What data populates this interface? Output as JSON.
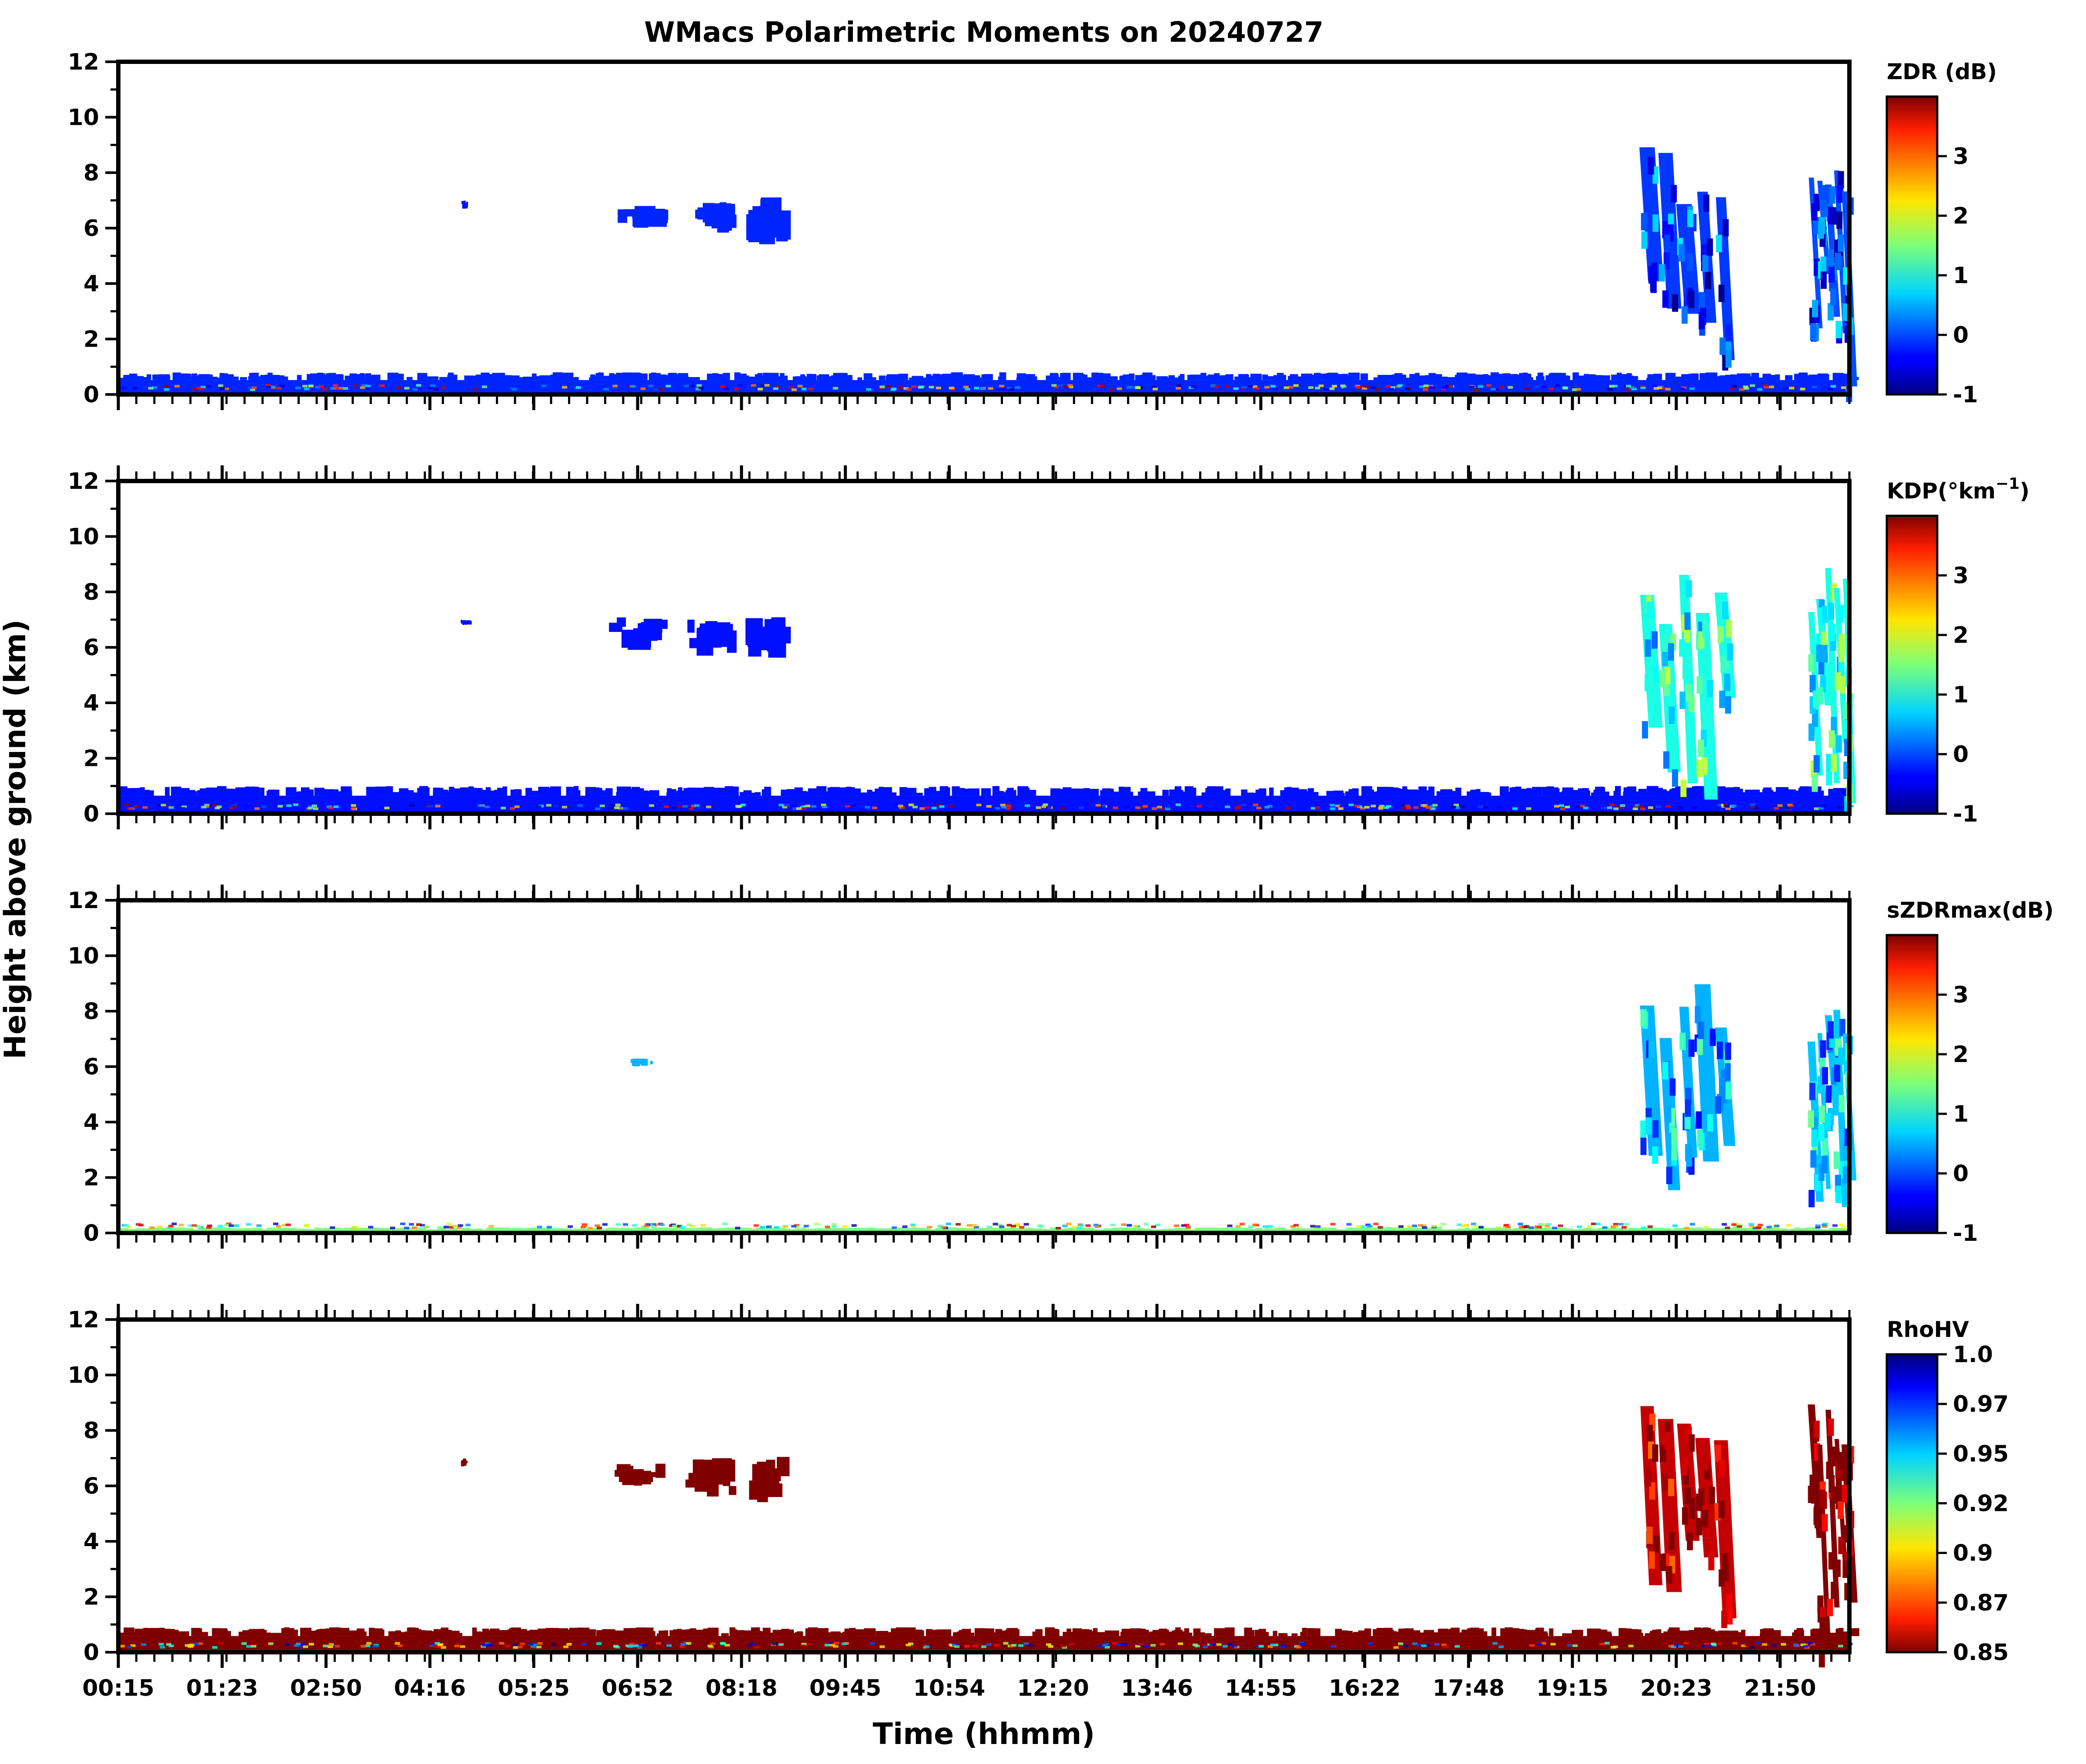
{
  "chart_data": {
    "type": "heatmap",
    "title": "WMacs Polarimetric Moments on 20240727",
    "xlabel": "Time (hhmm)",
    "ylabel": "Height above ground (km)",
    "xticklabels": [
      "00:15",
      "01:23",
      "02:50",
      "04:16",
      "05:25",
      "06:52",
      "08:18",
      "09:45",
      "10:54",
      "12:20",
      "13:46",
      "14:55",
      "16:22",
      "17:48",
      "19:15",
      "20:23",
      "21:50"
    ],
    "xrange_hours": [
      0.25,
      22.75
    ],
    "ylim": [
      0,
      12
    ],
    "yticks": [
      0,
      2,
      4,
      6,
      8,
      10,
      12
    ],
    "panels": [
      {
        "variable": "ZDR",
        "colorbar_label": "ZDR (dB)",
        "colorbar_ticks": [
          "-1",
          "0",
          "1",
          "2",
          "3"
        ],
        "colorbar_range": [
          -1,
          4
        ],
        "colormap": "jet",
        "features": [
          {
            "kind": "surface_layer",
            "start_h": 0.25,
            "end_h": 22.75,
            "top_km": 0.8,
            "value": -0.2
          },
          {
            "kind": "patch",
            "start_h": 4.7,
            "end_h": 4.8,
            "base_km": 6.7,
            "top_km": 7.0,
            "value": -0.3
          },
          {
            "kind": "patch",
            "start_h": 6.7,
            "end_h": 7.4,
            "base_km": 6.0,
            "top_km": 6.8,
            "value": -0.2
          },
          {
            "kind": "patch",
            "start_h": 7.6,
            "end_h": 8.3,
            "base_km": 5.6,
            "top_km": 7.0,
            "value": -0.2
          },
          {
            "kind": "patch",
            "start_h": 8.4,
            "end_h": 9.0,
            "base_km": 5.4,
            "top_km": 7.2,
            "value": -0.2
          },
          {
            "kind": "storm",
            "start_h": 20.0,
            "end_h": 21.2,
            "base_km": 0.0,
            "top_km": 9.0,
            "value": -0.1
          },
          {
            "kind": "storm",
            "start_h": 22.2,
            "end_h": 22.75,
            "base_km": 0.0,
            "top_km": 9.0,
            "value": 0.0
          }
        ]
      },
      {
        "variable": "KDP",
        "colorbar_label": "KDP(°km",
        "colorbar_label_sup": "−1",
        "colorbar_label_end": ")",
        "colorbar_ticks": [
          "-1",
          "0",
          "1",
          "2",
          "3"
        ],
        "colorbar_range": [
          -1,
          4
        ],
        "colormap": "jet",
        "features": [
          {
            "kind": "surface_layer",
            "start_h": 0.25,
            "end_h": 22.75,
            "top_km": 1.0,
            "value": -0.3
          },
          {
            "kind": "patch",
            "start_h": 4.7,
            "end_h": 4.85,
            "base_km": 6.8,
            "top_km": 7.0,
            "value": -0.3
          },
          {
            "kind": "patch",
            "start_h": 6.6,
            "end_h": 7.4,
            "base_km": 5.9,
            "top_km": 7.1,
            "value": -0.3
          },
          {
            "kind": "patch",
            "start_h": 7.6,
            "end_h": 8.3,
            "base_km": 5.7,
            "top_km": 7.0,
            "value": -0.3
          },
          {
            "kind": "patch",
            "start_h": 8.4,
            "end_h": 9.0,
            "base_km": 5.6,
            "top_km": 7.2,
            "value": -0.3
          },
          {
            "kind": "storm",
            "start_h": 20.0,
            "end_h": 21.2,
            "base_km": 0.0,
            "top_km": 9.0,
            "value": 1.0
          },
          {
            "kind": "storm",
            "start_h": 22.2,
            "end_h": 22.75,
            "base_km": 0.0,
            "top_km": 9.0,
            "value": 1.0
          }
        ]
      },
      {
        "variable": "sZDRmax",
        "colorbar_label": "sZDRmax(dB)",
        "colorbar_ticks": [
          "-1",
          "0",
          "1",
          "2",
          "3"
        ],
        "colorbar_range": [
          -1,
          4
        ],
        "colormap": "jet",
        "features": [
          {
            "kind": "surface_layer",
            "start_h": 0.25,
            "end_h": 22.75,
            "top_km": 0.2,
            "value": 1.5
          },
          {
            "kind": "patch",
            "start_h": 6.9,
            "end_h": 7.2,
            "base_km": 6.0,
            "top_km": 6.3,
            "value": 0.5
          },
          {
            "kind": "storm",
            "start_h": 20.0,
            "end_h": 21.2,
            "base_km": 0.0,
            "top_km": 9.0,
            "value": 0.5
          },
          {
            "kind": "storm",
            "start_h": 22.2,
            "end_h": 22.75,
            "base_km": 0.0,
            "top_km": 9.0,
            "value": 0.6
          }
        ]
      },
      {
        "variable": "RhoHV",
        "colorbar_label": "RhoHV",
        "colorbar_ticks": [
          "0.85",
          "0.87",
          "0.9",
          "0.92",
          "0.95",
          "0.97",
          "1.0"
        ],
        "colorbar_range": [
          0.85,
          1.0
        ],
        "colormap": "jet_r",
        "features": [
          {
            "kind": "surface_layer",
            "start_h": 0.25,
            "end_h": 22.75,
            "top_km": 0.9,
            "value": 0.85
          },
          {
            "kind": "patch",
            "start_h": 4.7,
            "end_h": 4.8,
            "base_km": 6.7,
            "top_km": 7.0,
            "value": 0.85
          },
          {
            "kind": "patch",
            "start_h": 6.7,
            "end_h": 7.4,
            "base_km": 6.0,
            "top_km": 6.8,
            "value": 0.85
          },
          {
            "kind": "patch",
            "start_h": 7.6,
            "end_h": 8.3,
            "base_km": 5.6,
            "top_km": 7.0,
            "value": 0.85
          },
          {
            "kind": "patch",
            "start_h": 8.4,
            "end_h": 9.0,
            "base_km": 5.4,
            "top_km": 7.2,
            "value": 0.85
          },
          {
            "kind": "storm",
            "start_h": 20.0,
            "end_h": 21.2,
            "base_km": 0.0,
            "top_km": 9.0,
            "value": 0.86
          },
          {
            "kind": "storm",
            "start_h": 22.2,
            "end_h": 22.75,
            "base_km": 0.0,
            "top_km": 9.0,
            "value": 0.85
          }
        ]
      }
    ]
  }
}
